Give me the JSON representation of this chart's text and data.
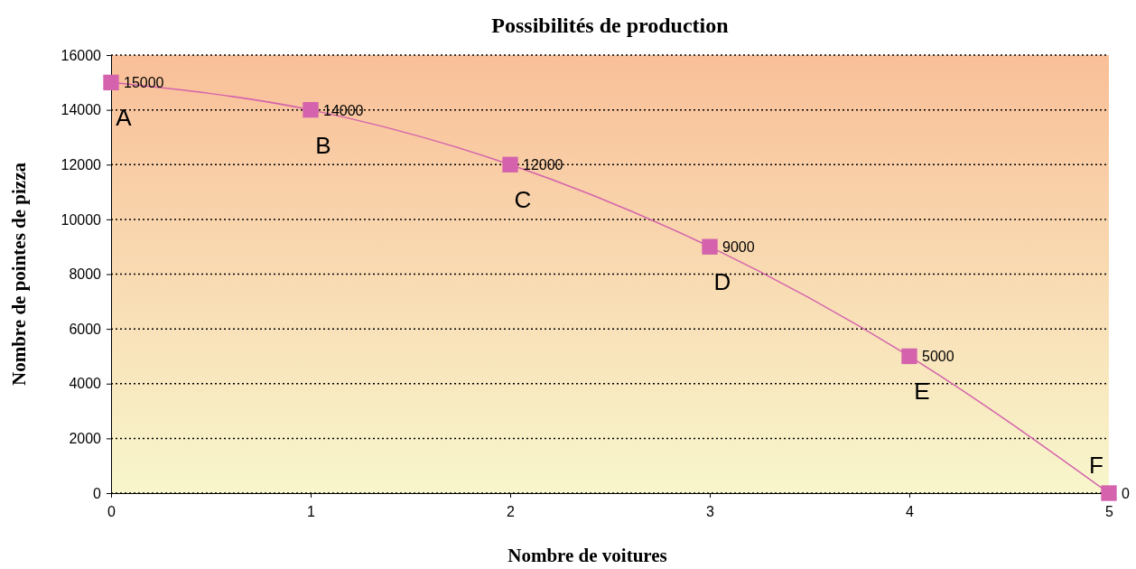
{
  "chart_data": {
    "type": "line",
    "title": "Possibilités de production",
    "xlabel": "Nombre de voitures",
    "ylabel": "Nombre de pointes de pizza",
    "x": [
      0,
      1,
      2,
      3,
      4,
      5
    ],
    "series": [
      {
        "color": "#d462ac",
        "values": [
          15000,
          14000,
          12000,
          9000,
          5000,
          0
        ]
      }
    ],
    "xlim": [
      0,
      5
    ],
    "xticks": [
      0,
      1,
      2,
      3,
      4,
      5
    ],
    "ylim": [
      0,
      16000
    ],
    "yticks": [
      0,
      2000,
      4000,
      6000,
      8000,
      10000,
      12000,
      14000,
      16000
    ],
    "grid": "y",
    "marker": "square",
    "line_style": "solid",
    "data_labels": true,
    "annotations": [
      {
        "text": "A",
        "x": 0,
        "y": 15000
      },
      {
        "text": "B",
        "x": 1,
        "y": 14000
      },
      {
        "text": "C",
        "x": 2,
        "y": 12000
      },
      {
        "text": "D",
        "x": 3,
        "y": 9000
      },
      {
        "text": "E",
        "x": 4,
        "y": 5000
      },
      {
        "text": "F",
        "x": 5,
        "y": 0
      }
    ]
  }
}
